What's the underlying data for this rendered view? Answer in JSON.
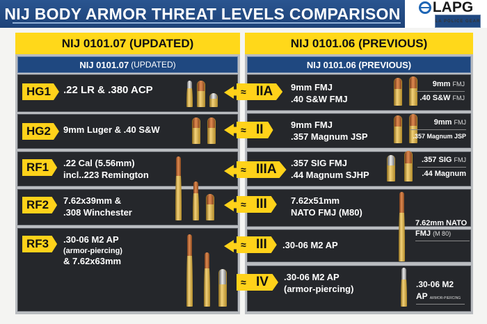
{
  "title": "NIJ BODY ARMOR THREAT LEVELS COMPARISON",
  "logo": {
    "name": "LAPG",
    "tagline": "LA POLICE GEAR"
  },
  "left": {
    "header": "NIJ 0101.07 (UPDATED)",
    "sub_bold": "NIJ 0101.07",
    "sub_light": "(UPDATED)",
    "rows": [
      {
        "level": "HG1",
        "lines": [
          ".22 LR & .380 ACP"
        ]
      },
      {
        "level": "HG2",
        "lines": [
          "9mm Luger & .40 S&W"
        ]
      },
      {
        "level": "RF1",
        "lines": [
          ".22 Cal (5.56mm)",
          "incl..223 Remington"
        ]
      },
      {
        "level": "RF2",
        "lines": [
          "7.62x39mm &",
          ".308 Winchester"
        ]
      },
      {
        "level": "RF3",
        "lines": [
          ".30-06 M2 AP",
          "(armor-piercing)",
          "& 7.62x63mm"
        ]
      }
    ]
  },
  "right": {
    "header": "NIJ 0101.06 (PREVIOUS)",
    "sub": "NIJ 0101.06 (PREVIOUS)",
    "approx": "≈",
    "rows": [
      {
        "level": "IIA",
        "lines": [
          "9mm FMJ",
          ".40 S&W FMJ"
        ],
        "label": [
          [
            "9mm",
            "FMJ"
          ],
          [
            ".40 S&W",
            "FMJ"
          ]
        ]
      },
      {
        "level": "II",
        "lines": [
          "9mm FMJ",
          ".357 Magnum JSP"
        ],
        "label": [
          [
            "9mm",
            "FMJ"
          ],
          [
            ".357 Magnum JSP",
            ""
          ]
        ]
      },
      {
        "level": "IIIA",
        "lines": [
          ".357 SIG FMJ",
          ".44 Magnum SJHP"
        ],
        "label": [
          [
            ".357 SIG",
            "FMJ"
          ],
          [
            ".44 Magnum",
            ""
          ]
        ]
      },
      {
        "level": "III",
        "lines": [
          "7.62x51mm",
          "NATO FMJ (M80)"
        ],
        "label": [
          [
            "7.62mm NATO",
            ""
          ],
          [
            "FMJ",
            "(M 80)"
          ]
        ]
      },
      {
        "level": "III",
        "lines": [
          ".30-06 M2 AP"
        ]
      },
      {
        "level": "IV",
        "lines": [
          ".30-06 M2 AP",
          "(armor-piercing)"
        ],
        "label": [
          [
            ".30-06 M2",
            ""
          ],
          [
            "AP",
            "ARMOR-PIERCING"
          ]
        ]
      }
    ]
  }
}
